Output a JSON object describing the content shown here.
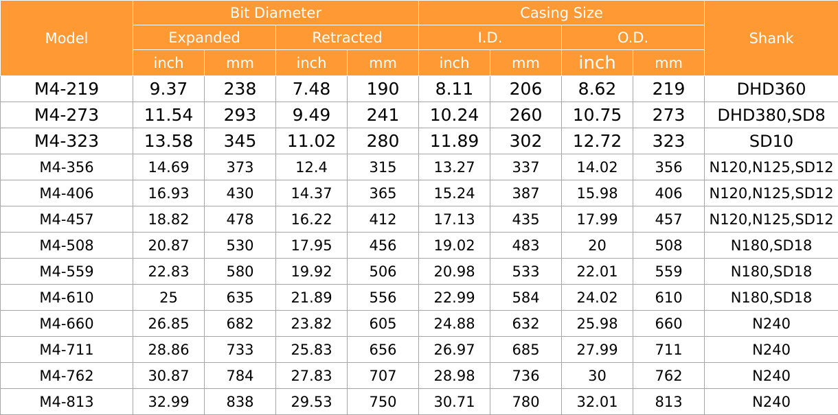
{
  "header": {
    "model": "Model",
    "bit_diameter": "Bit Diameter",
    "casing_size": "Casing Size",
    "shank": "Shank",
    "expanded": "Expanded",
    "retracted": "Retracted",
    "id": "I.D.",
    "od": "O.D.",
    "units": [
      "inch",
      "mm",
      "inch",
      "mm",
      "inch",
      "mm",
      "inch",
      "mm"
    ]
  },
  "colors": {
    "header_bg": "#ff9933",
    "header_text": "#ffffff",
    "grid": "#a6a6a6"
  },
  "rows": [
    {
      "model": "M4-219",
      "exp_in": "9.37",
      "exp_mm": "238",
      "ret_in": "7.48",
      "ret_mm": "190",
      "id_in": "8.11",
      "id_mm": "206",
      "od_in": "8.62",
      "od_mm": "219",
      "shank": "DHD360"
    },
    {
      "model": "M4-273",
      "exp_in": "11.54",
      "exp_mm": "293",
      "ret_in": "9.49",
      "ret_mm": "241",
      "id_in": "10.24",
      "id_mm": "260",
      "od_in": "10.75",
      "od_mm": "273",
      "shank": "DHD380,SD8"
    },
    {
      "model": "M4-323",
      "exp_in": "13.58",
      "exp_mm": "345",
      "ret_in": "11.02",
      "ret_mm": "280",
      "id_in": "11.89",
      "id_mm": "302",
      "od_in": "12.72",
      "od_mm": "323",
      "shank": "SD10"
    },
    {
      "model": "M4-356",
      "exp_in": "14.69",
      "exp_mm": "373",
      "ret_in": "12.4",
      "ret_mm": "315",
      "id_in": "13.27",
      "id_mm": "337",
      "od_in": "14.02",
      "od_mm": "356",
      "shank": "N120,N125,SD12"
    },
    {
      "model": "M4-406",
      "exp_in": "16.93",
      "exp_mm": "430",
      "ret_in": "14.37",
      "ret_mm": "365",
      "id_in": "15.24",
      "id_mm": "387",
      "od_in": "15.98",
      "od_mm": "406",
      "shank": "N120,N125,SD12"
    },
    {
      "model": "M4-457",
      "exp_in": "18.82",
      "exp_mm": "478",
      "ret_in": "16.22",
      "ret_mm": "412",
      "id_in": "17.13",
      "id_mm": "435",
      "od_in": "17.99",
      "od_mm": "457",
      "shank": "N120,N125,SD12"
    },
    {
      "model": "M4-508",
      "exp_in": "20.87",
      "exp_mm": "530",
      "ret_in": "17.95",
      "ret_mm": "456",
      "id_in": "19.02",
      "id_mm": "483",
      "od_in": "20",
      "od_mm": "508",
      "shank": "N180,SD18"
    },
    {
      "model": "M4-559",
      "exp_in": "22.83",
      "exp_mm": "580",
      "ret_in": "19.92",
      "ret_mm": "506",
      "id_in": "20.98",
      "id_mm": "533",
      "od_in": "22.01",
      "od_mm": "559",
      "shank": "N180,SD18"
    },
    {
      "model": "M4-610",
      "exp_in": "25",
      "exp_mm": "635",
      "ret_in": "21.89",
      "ret_mm": "556",
      "id_in": "22.99",
      "id_mm": "584",
      "od_in": "24.02",
      "od_mm": "610",
      "shank": "N180,SD18"
    },
    {
      "model": "M4-660",
      "exp_in": "26.85",
      "exp_mm": "682",
      "ret_in": "23.82",
      "ret_mm": "605",
      "id_in": "24.88",
      "id_mm": "632",
      "od_in": "25.98",
      "od_mm": "660",
      "shank": "N240"
    },
    {
      "model": "M4-711",
      "exp_in": "28.86",
      "exp_mm": "733",
      "ret_in": "25.83",
      "ret_mm": "656",
      "id_in": "26.97",
      "id_mm": "685",
      "od_in": "27.99",
      "od_mm": "711",
      "shank": "N240"
    },
    {
      "model": "M4-762",
      "exp_in": "30.87",
      "exp_mm": "784",
      "ret_in": "27.83",
      "ret_mm": "707",
      "id_in": "28.98",
      "id_mm": "736",
      "od_in": "30",
      "od_mm": "762",
      "shank": "N240"
    },
    {
      "model": "M4-813",
      "exp_in": "32.99",
      "exp_mm": "838",
      "ret_in": "29.53",
      "ret_mm": "750",
      "id_in": "30.71",
      "id_mm": "780",
      "od_in": "32.01",
      "od_mm": "813",
      "shank": "N240"
    }
  ]
}
